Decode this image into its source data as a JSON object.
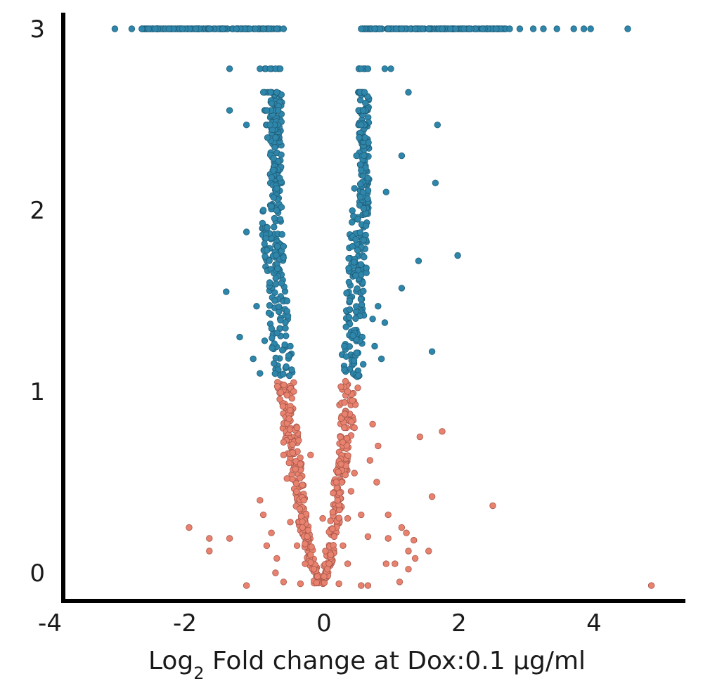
{
  "chart_data": {
    "type": "scatter",
    "title": "",
    "xlabel_main": "Log",
    "xlabel_sub": "2",
    "xlabel_rest": " Fold change at Dox:0.1 µg/ml",
    "ylabel": "",
    "xlim": [
      -4,
      5.4
    ],
    "ylim": [
      -0.12,
      3.08
    ],
    "x_ticks": [
      -4,
      -2,
      0,
      2,
      4
    ],
    "x_tick_labels": [
      "-4",
      "-2",
      "0",
      "2",
      "4"
    ],
    "y_ticks": [
      0,
      1,
      2,
      3
    ],
    "y_tick_labels": [
      "0",
      "1",
      "2",
      "3"
    ],
    "grid": false,
    "legend": "none",
    "threshold_y": 1.07,
    "colors": {
      "upper": "#2e86ab",
      "upper_edge": "#1f5f7a",
      "lower": "#e8826f",
      "lower_edge": "#a9574a",
      "axis": "#000000"
    },
    "series": [
      {
        "values": [
          [
            -3.1,
            3.0
          ],
          [
            -2.85,
            3.0
          ],
          [
            -2.7,
            3.0
          ],
          [
            -2.6,
            3.0
          ],
          [
            -2.5,
            3.0
          ],
          [
            -2.3,
            3.0
          ],
          [
            -2.1,
            3.0
          ],
          [
            -1.9,
            3.0
          ],
          [
            -1.7,
            3.0
          ],
          [
            -1.5,
            3.0
          ],
          [
            -1.3,
            3.0
          ],
          [
            -1.1,
            3.0
          ],
          [
            -0.9,
            3.0
          ],
          [
            -0.7,
            3.0
          ],
          [
            -0.6,
            3.0
          ],
          [
            0.55,
            3.0
          ],
          [
            0.75,
            3.0
          ],
          [
            0.95,
            3.0
          ],
          [
            1.15,
            3.0
          ],
          [
            1.35,
            3.0
          ],
          [
            1.55,
            3.0
          ],
          [
            1.75,
            3.0
          ],
          [
            1.95,
            3.0
          ],
          [
            2.15,
            3.0
          ],
          [
            2.35,
            3.0
          ],
          [
            2.55,
            3.0
          ],
          [
            2.75,
            3.0
          ],
          [
            2.9,
            3.0
          ],
          [
            3.1,
            3.0
          ],
          [
            3.25,
            3.0
          ],
          [
            3.45,
            3.0
          ],
          [
            3.7,
            3.0
          ],
          [
            3.85,
            3.0
          ],
          [
            3.95,
            3.0
          ],
          [
            4.5,
            3.0
          ],
          [
            -1.4,
            2.78
          ],
          [
            -0.95,
            2.78
          ],
          [
            -0.8,
            2.78
          ],
          [
            -0.65,
            2.78
          ],
          [
            0.55,
            2.78
          ],
          [
            0.65,
            2.78
          ],
          [
            0.9,
            2.78
          ],
          [
            0.99,
            2.78
          ],
          [
            -0.9,
            2.65
          ],
          [
            -0.7,
            2.65
          ],
          [
            0.6,
            2.65
          ],
          [
            1.25,
            2.65
          ],
          [
            -1.4,
            2.55
          ],
          [
            -0.85,
            2.55
          ],
          [
            -0.68,
            2.55
          ],
          [
            0.58,
            2.55
          ],
          [
            -1.15,
            2.47
          ],
          [
            -0.8,
            2.47
          ],
          [
            0.55,
            2.47
          ],
          [
            1.68,
            2.47
          ],
          [
            -0.72,
            2.4
          ],
          [
            0.52,
            2.4
          ],
          [
            1.15,
            2.3
          ],
          [
            0.48,
            2.3
          ],
          [
            -0.75,
            2.22
          ],
          [
            0.55,
            2.22
          ],
          [
            1.65,
            2.15
          ],
          [
            0.92,
            2.1
          ],
          [
            -0.7,
            2.12
          ],
          [
            0.45,
            2.12
          ],
          [
            -0.9,
            2.0
          ],
          [
            -1.15,
            1.88
          ],
          [
            -0.65,
            1.95
          ],
          [
            0.5,
            1.95
          ],
          [
            1.4,
            1.72
          ],
          [
            1.98,
            1.75
          ],
          [
            -0.6,
            1.8
          ],
          [
            0.42,
            1.8
          ],
          [
            -1.45,
            1.55
          ],
          [
            1.15,
            1.57
          ],
          [
            -1.0,
            1.47
          ],
          [
            0.8,
            1.47
          ],
          [
            0.72,
            1.4
          ],
          [
            0.9,
            1.38
          ],
          [
            -0.55,
            1.5
          ],
          [
            0.38,
            1.5
          ],
          [
            -1.25,
            1.3
          ],
          [
            -0.88,
            1.28
          ],
          [
            0.75,
            1.25
          ],
          [
            1.6,
            1.22
          ],
          [
            0.85,
            1.18
          ],
          [
            -1.05,
            1.18
          ],
          [
            -0.5,
            1.25
          ],
          [
            0.3,
            1.25
          ],
          [
            -0.95,
            1.1
          ],
          [
            0.58,
            1.15
          ],
          [
            -0.48,
            1.12
          ],
          [
            0.3,
            1.12
          ]
        ]
      },
      {
        "values": [
          [
            -0.1,
            -0.02
          ],
          [
            0.0,
            -0.02
          ],
          [
            -0.15,
            0.02
          ],
          [
            0.05,
            0.02
          ],
          [
            -0.2,
            0.1
          ],
          [
            0.1,
            0.1
          ],
          [
            -0.25,
            0.2
          ],
          [
            0.15,
            0.2
          ],
          [
            -0.3,
            0.4
          ],
          [
            0.2,
            0.4
          ],
          [
            -0.35,
            0.6
          ],
          [
            0.25,
            0.6
          ],
          [
            -0.4,
            0.8
          ],
          [
            0.3,
            0.8
          ],
          [
            -0.45,
            1.0
          ],
          [
            0.35,
            1.0
          ],
          [
            -2.0,
            0.25
          ],
          [
            -1.7,
            0.19
          ],
          [
            -1.7,
            0.12
          ],
          [
            -1.4,
            0.19
          ],
          [
            -1.15,
            -0.07
          ],
          [
            -0.9,
            0.32
          ],
          [
            -0.95,
            0.4
          ],
          [
            -0.78,
            0.22
          ],
          [
            -0.85,
            0.15
          ],
          [
            -0.7,
            0.08
          ],
          [
            -0.72,
            0.0
          ],
          [
            -0.6,
            -0.05
          ],
          [
            -0.55,
            0.52
          ],
          [
            -0.6,
            0.65
          ],
          [
            -0.6,
            0.72
          ],
          [
            0.55,
            -0.07
          ],
          [
            0.65,
            -0.07
          ],
          [
            0.55,
            0.32
          ],
          [
            0.78,
            0.5
          ],
          [
            0.95,
            0.32
          ],
          [
            0.95,
            0.19
          ],
          [
            0.92,
            0.05
          ],
          [
            1.05,
            0.05
          ],
          [
            1.15,
            0.25
          ],
          [
            1.22,
            0.22
          ],
          [
            1.25,
            0.12
          ],
          [
            1.33,
            0.18
          ],
          [
            1.12,
            -0.05
          ],
          [
            1.25,
            0.02
          ],
          [
            1.35,
            0.08
          ],
          [
            1.55,
            0.12
          ],
          [
            1.6,
            0.42
          ],
          [
            1.42,
            0.75
          ],
          [
            1.75,
            0.78
          ],
          [
            2.5,
            0.37
          ],
          [
            4.85,
            -0.07
          ],
          [
            0.42,
            0.95
          ],
          [
            0.72,
            0.82
          ],
          [
            0.8,
            0.7
          ],
          [
            0.68,
            0.62
          ],
          [
            0.45,
            0.55
          ],
          [
            0.35,
            0.3
          ],
          [
            0.28,
            0.15
          ],
          [
            0.35,
            0.05
          ],
          [
            -0.32,
            0.25
          ],
          [
            -0.28,
            0.05
          ],
          [
            -0.4,
            0.15
          ],
          [
            -0.5,
            0.28
          ],
          [
            0.02,
            0.12
          ],
          [
            -0.02,
            0.3
          ],
          [
            0.4,
            0.45
          ],
          [
            -0.52,
            0.85
          ],
          [
            0.45,
            0.8
          ],
          [
            -0.55,
            0.98
          ],
          [
            0.5,
            1.02
          ],
          [
            0.18,
            0.5
          ],
          [
            -0.2,
            0.65
          ],
          [
            0.65,
            0.2
          ],
          [
            -0.35,
            -0.06
          ],
          [
            0.22,
            -0.06
          ]
        ]
      }
    ]
  }
}
